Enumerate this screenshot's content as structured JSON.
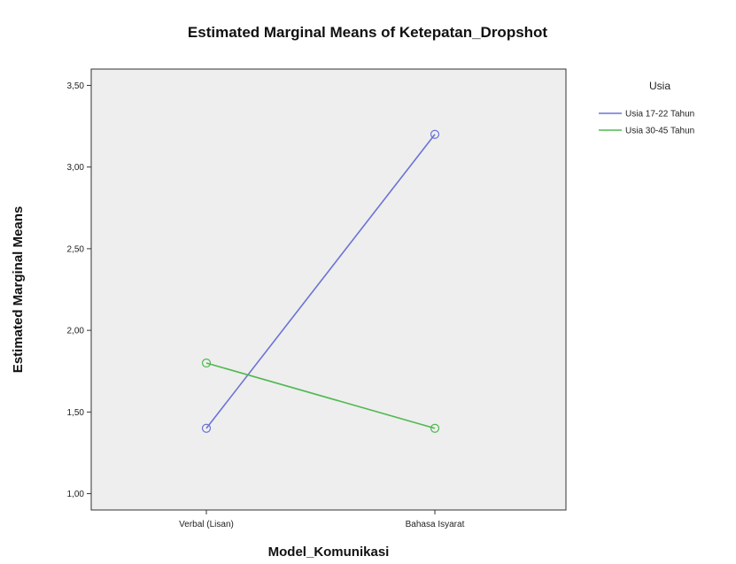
{
  "chart_data": {
    "type": "line",
    "title": "Estimated Marginal Means of Ketepatan_Dropshot",
    "xlabel": "Model_Komunikasi",
    "ylabel": "Estimated Marginal Means",
    "categories": [
      "Verbal (Lisan)",
      "Bahasa Isyarat"
    ],
    "y_ticks": [
      "1,00",
      "1,50",
      "2,00",
      "2,50",
      "3,00",
      "3,50"
    ],
    "ylim": [
      0.9,
      3.6
    ],
    "grid": false,
    "legend_title": "Usia",
    "legend_position": "right",
    "series": [
      {
        "name": "Usia 17-22 Tahun",
        "values": [
          1.4,
          3.2
        ],
        "color": "#6b73d6"
      },
      {
        "name": "Usia 30-45 Tahun",
        "values": [
          1.8,
          1.4
        ],
        "color": "#4fb84f"
      }
    ],
    "plot_background": "#eeeeee"
  }
}
